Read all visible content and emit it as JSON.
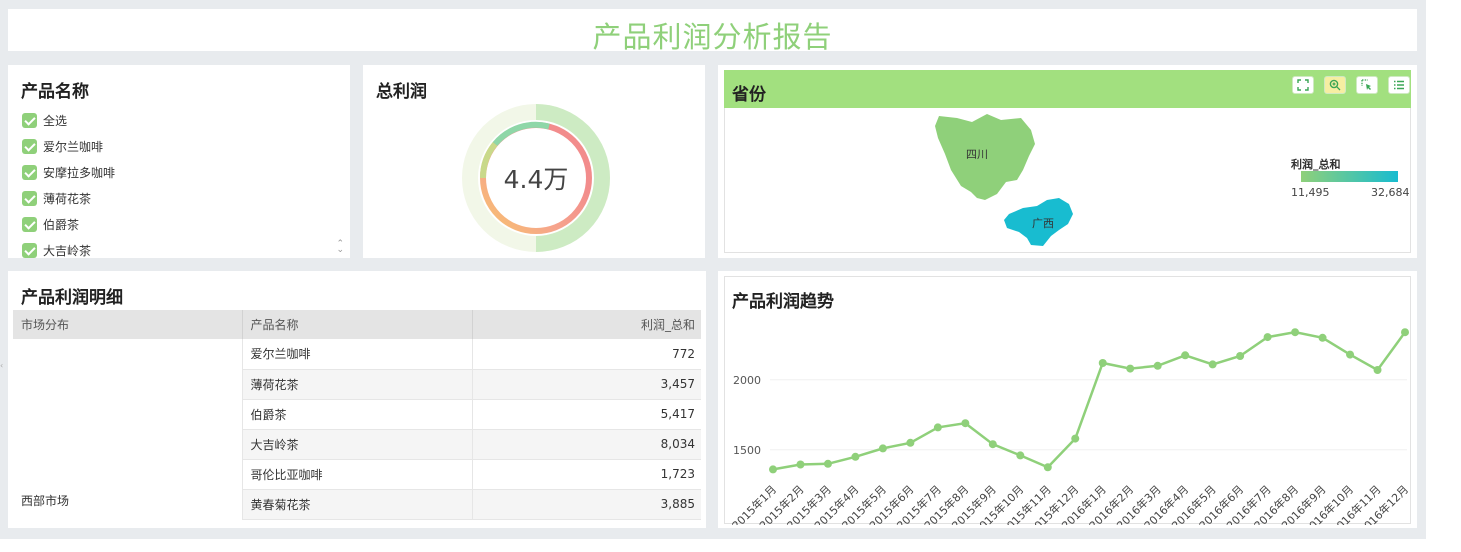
{
  "title": "产品利润分析报告",
  "filter": {
    "title": "产品名称",
    "items": [
      {
        "label": "全选",
        "checked": true
      },
      {
        "label": "爱尔兰咖啡",
        "checked": true
      },
      {
        "label": "安摩拉多咖啡",
        "checked": true
      },
      {
        "label": "薄荷花茶",
        "checked": true
      },
      {
        "label": "伯爵茶",
        "checked": true
      },
      {
        "label": "大吉岭茶",
        "checked": true
      }
    ]
  },
  "total_profit": {
    "title": "总利润",
    "value": "4.4万"
  },
  "map": {
    "title": "省份",
    "regions": [
      {
        "name": "四川",
        "value": 11495,
        "color": "#8fd07a"
      },
      {
        "name": "广西",
        "value": 32684,
        "color": "#18bcd0"
      }
    ],
    "legend": {
      "title": "利润_总和",
      "min": "11,495",
      "max": "32,684"
    },
    "tools": [
      "fullscreen-icon",
      "zoom-icon",
      "select-icon",
      "list-icon"
    ]
  },
  "detail": {
    "title": "产品利润明细",
    "columns": [
      "市场分布",
      "产品名称",
      "利润_总和"
    ],
    "market": "西部市场",
    "rows": [
      {
        "product": "爱尔兰咖啡",
        "profit": "772"
      },
      {
        "product": "薄荷花茶",
        "profit": "3,457"
      },
      {
        "product": "伯爵茶",
        "profit": "5,417"
      },
      {
        "product": "大吉岭茶",
        "profit": "8,034"
      },
      {
        "product": "哥伦比亚咖啡",
        "profit": "1,723"
      },
      {
        "product": "黄春菊花茶",
        "profit": "3,885"
      }
    ]
  },
  "chart_data": {
    "type": "line",
    "title": "产品利润趋势",
    "x": [
      "2015年1月",
      "2015年2月",
      "2015年3月",
      "2015年4月",
      "2015年5月",
      "2015年6月",
      "2015年7月",
      "2015年8月",
      "2015年9月",
      "2015年10月",
      "2015年11月",
      "2015年12月",
      "2016年1月",
      "2016年2月",
      "2016年3月",
      "2016年4月",
      "2016年5月",
      "2016年6月",
      "2016年7月",
      "2016年8月",
      "2016年9月",
      "2016年10月",
      "2016年11月",
      "2016年12月"
    ],
    "series": [
      {
        "values": [
          1360,
          1395,
          1400,
          1450,
          1510,
          1550,
          1660,
          1690,
          1540,
          1460,
          1375,
          1580,
          2120,
          2080,
          2100,
          2175,
          2110,
          2170,
          2305,
          2340,
          2300,
          2180,
          2070,
          2340
        ],
        "color": "#8fd07a"
      }
    ],
    "yticks": [
      1500,
      2000
    ],
    "ylim": [
      1270,
      2520
    ],
    "grid": true
  }
}
